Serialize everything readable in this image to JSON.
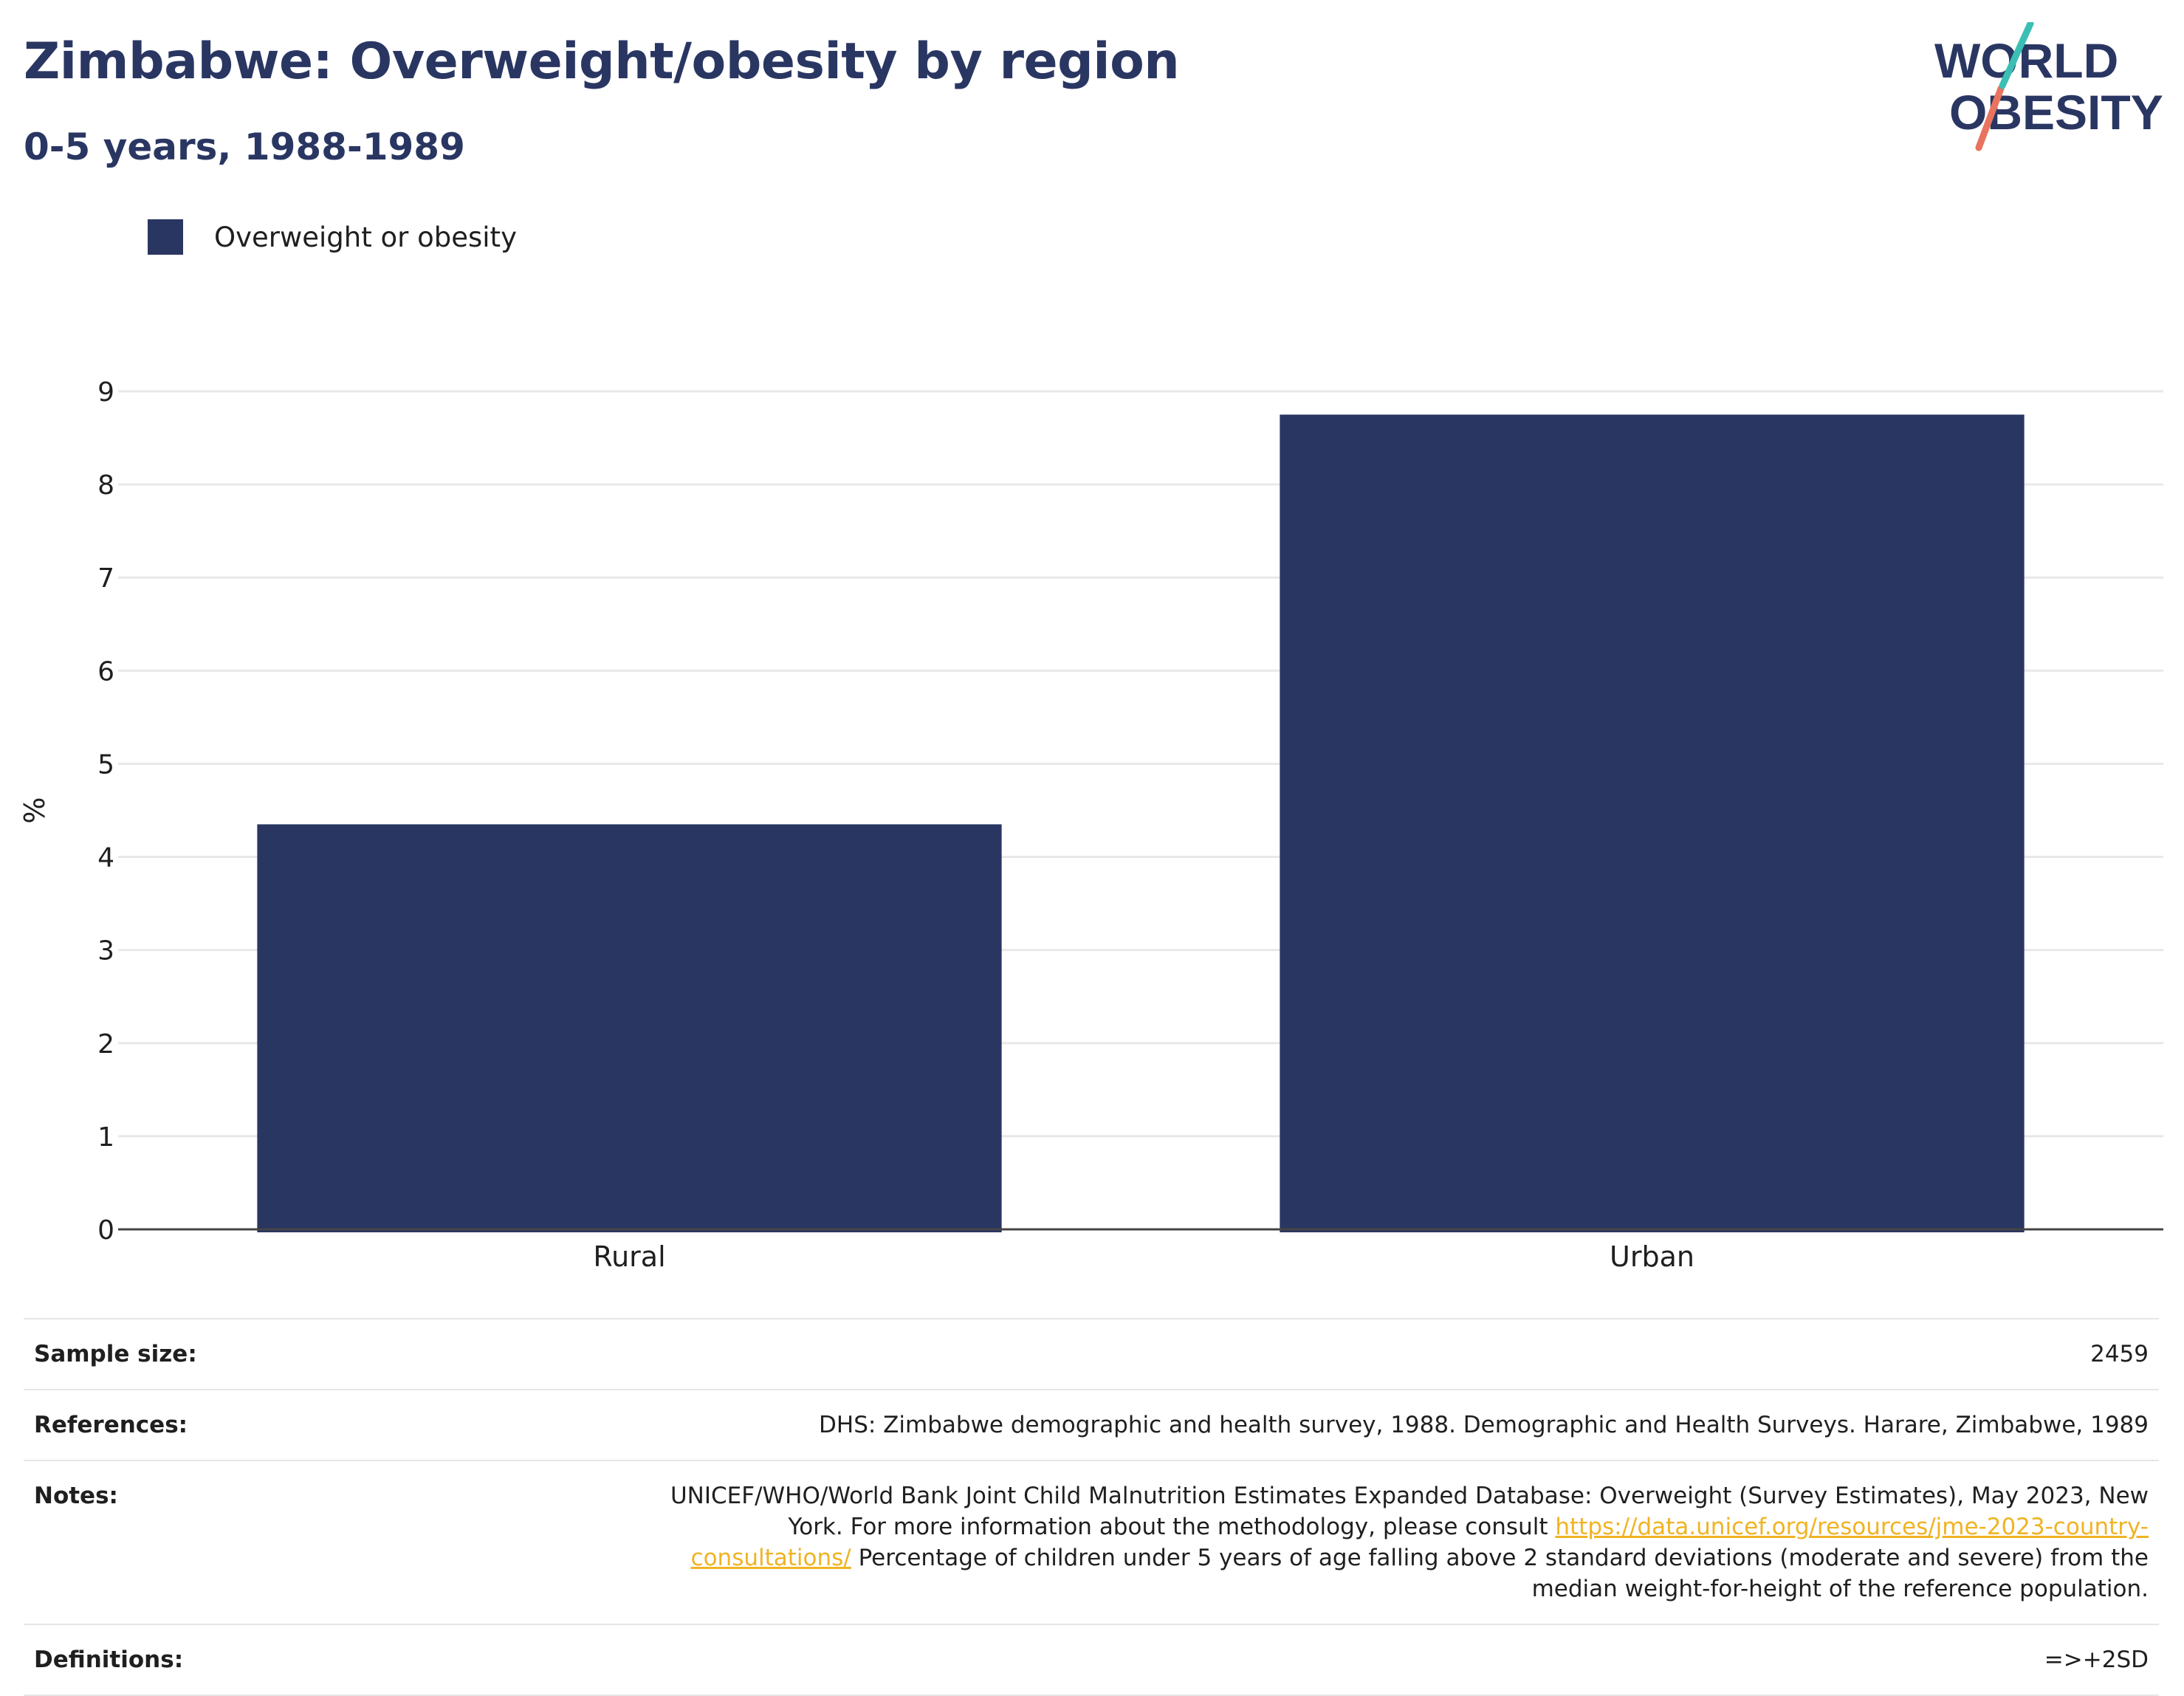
{
  "header": {
    "title": "Zimbabwe: Overweight/obesity by region",
    "subtitle": "0-5 years, 1988-1989"
  },
  "logo": {
    "line1": "WORLD",
    "line2": "OBESITY",
    "colors": {
      "text": "#2a3662",
      "slash_top": "#3bbfb4",
      "slash_bottom": "#e8735e"
    }
  },
  "legend": {
    "label": "Overweight or obesity",
    "color": "#2a3662"
  },
  "chart_data": {
    "type": "bar",
    "categories": [
      "Rural",
      "Urban"
    ],
    "series": [
      {
        "name": "Overweight or obesity",
        "values": [
          4.35,
          8.75
        ],
        "color": "#2a3662"
      }
    ],
    "ylabel": "%",
    "xlabel": "",
    "ylim": [
      0,
      9
    ],
    "yticks": [
      0,
      1,
      2,
      3,
      4,
      5,
      6,
      7,
      8,
      9
    ],
    "grid": true,
    "legend_position": "top-left"
  },
  "meta": {
    "sample_size_label": "Sample size:",
    "sample_size_value": "2459",
    "references_label": "References:",
    "references_value": "DHS: Zimbabwe demographic and health survey, 1988. Demographic and Health Surveys. Harare, Zimbabwe, 1989",
    "notes_label": "Notes:",
    "notes_text_1": "UNICEF/WHO/World Bank Joint Child Malnutrition Estimates Expanded Database: Overweight (Survey Estimates), May 2023, New York. For more information about the methodology, please consult ",
    "notes_link": "https://data.unicef.org/resources/jme-2023-country-consultations/",
    "notes_text_2": " Percentage of children under 5 years of age falling above 2 standard deviations (moderate and severe) from the median weight-for-height of the reference population.",
    "definitions_label": "Definitions:",
    "definitions_value": "=>+2SD"
  }
}
